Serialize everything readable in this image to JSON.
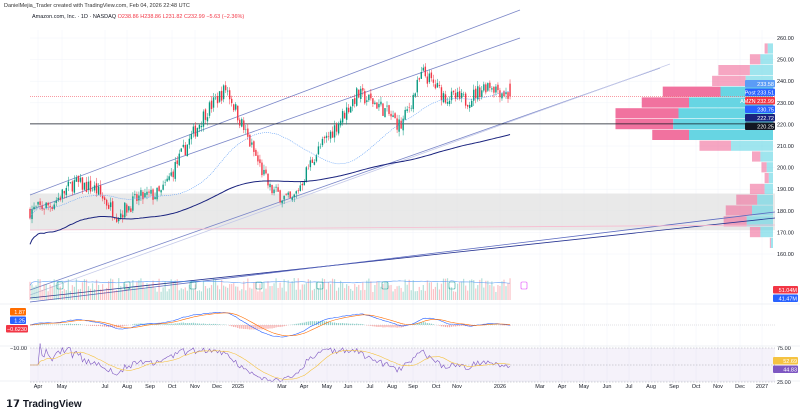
{
  "header": {
    "credit": "DanielMejia_Trader created with TradingView.com, Feb 04, 2026 22:48 UTC",
    "symbol": "Amazon.com, Inc. · 1D · NASDAQ",
    "open": "O238.86",
    "high": "H238.86",
    "low": "L231.82",
    "close": "C232.99",
    "change": "−5.63 (−2.36%)"
  },
  "footer": {
    "brand": "TradingView",
    "logo": "TV"
  },
  "colors": {
    "up": "#089981",
    "down": "#f23645",
    "profile_up": "#5fd3e2",
    "profile_down": "#f06a9a",
    "sma_fast": "#5b9cf6",
    "sma_slow": "#1a237e",
    "rsi": "#7e57c2",
    "rsi_ma": "#f5c342",
    "macd": "#2962ff",
    "signal": "#ff6d00"
  },
  "price_labels": [
    {
      "text": "233.58",
      "price": 233.58,
      "color": "#5b9cf6"
    },
    {
      "text": "Post 233.51",
      "price": 233.51,
      "color": "#2962ff"
    },
    {
      "text": "AMZN 232.99",
      "price": 232.99,
      "color": "#f23645"
    },
    {
      "text": "230.75",
      "price": 230.75,
      "color": "#2962ff"
    },
    {
      "text": "222.72",
      "price": 222.72,
      "color": "#1a237e"
    },
    {
      "text": "220.25",
      "price": 220.25,
      "color": "#131722"
    }
  ],
  "volume_labels": [
    {
      "text": "51.04M",
      "color": "#f23645"
    },
    {
      "text": "41.47M",
      "color": "#2962ff"
    }
  ],
  "macd_labels": [
    {
      "text": "1.87",
      "color": "#ff6d00"
    },
    {
      "text": "1.25",
      "color": "#2962ff"
    },
    {
      "text": "−0.6230",
      "color": "#f23645"
    }
  ],
  "macd_scale": "−10.00",
  "rsi_labels": [
    {
      "text": "52.69",
      "color": "#f5c342"
    },
    {
      "text": "44.83",
      "color": "#7e57c2"
    }
  ],
  "rsi_scale": [
    "75.00",
    "25.00"
  ],
  "chart_data": {
    "type": "candlestick",
    "title": "Amazon.com, Inc. · 1D · NASDAQ",
    "ylim": [
      160,
      262
    ],
    "yticks": [
      260,
      250,
      240,
      230,
      220,
      210,
      200,
      190,
      180,
      170,
      160
    ],
    "xticks": [
      "Apr",
      "May",
      "Jul",
      "Aug",
      "Sep",
      "Oct",
      "Nov",
      "Dec",
      "2025",
      "Mar",
      "Apr",
      "May",
      "Jun",
      "Jul",
      "Aug",
      "Sep",
      "Oct",
      "Nov",
      "2026",
      "Mar",
      "Apr",
      "May",
      "Jun",
      "Jul",
      "Aug",
      "Sep",
      "Oct",
      "Nov",
      "Dec",
      "2027"
    ],
    "approx_monthly_close": {
      "months": [
        "2024-04",
        "2024-05",
        "2024-06",
        "2024-07",
        "2024-08",
        "2024-09",
        "2024-10",
        "2024-11",
        "2024-12",
        "2025-01",
        "2025-02",
        "2025-03",
        "2025-04",
        "2025-05",
        "2025-06",
        "2025-07",
        "2025-08",
        "2025-09",
        "2025-10",
        "2025-11",
        "2025-12",
        "2026-01",
        "2026-02"
      ],
      "values": [
        180,
        183,
        193,
        190,
        178,
        186,
        188,
        207,
        225,
        237,
        213,
        190,
        184,
        205,
        219,
        234,
        229,
        219,
        244,
        233,
        231,
        239,
        232.99
      ]
    },
    "last": {
      "open": 238.86,
      "high": 238.86,
      "low": 231.82,
      "close": 232.99
    },
    "support_zone": [
      171,
      188
    ],
    "volume_profile": {
      "bins": [
        255,
        250,
        245,
        240,
        235,
        230,
        225,
        220,
        215,
        210,
        205,
        200,
        195,
        190,
        185,
        180,
        175,
        170,
        165
      ],
      "up": [
        5,
        12,
        22,
        26,
        50,
        80,
        90,
        95,
        80,
        40,
        12,
        6,
        4,
        8,
        15,
        20,
        25,
        12,
        2
      ],
      "down": [
        3,
        10,
        30,
        32,
        55,
        45,
        60,
        55,
        35,
        30,
        8,
        5,
        4,
        14,
        20,
        25,
        22,
        10,
        1
      ]
    },
    "indicators": [
      "SMA fast",
      "SMA 200",
      "Volume",
      "MACD",
      "RSI"
    ]
  }
}
